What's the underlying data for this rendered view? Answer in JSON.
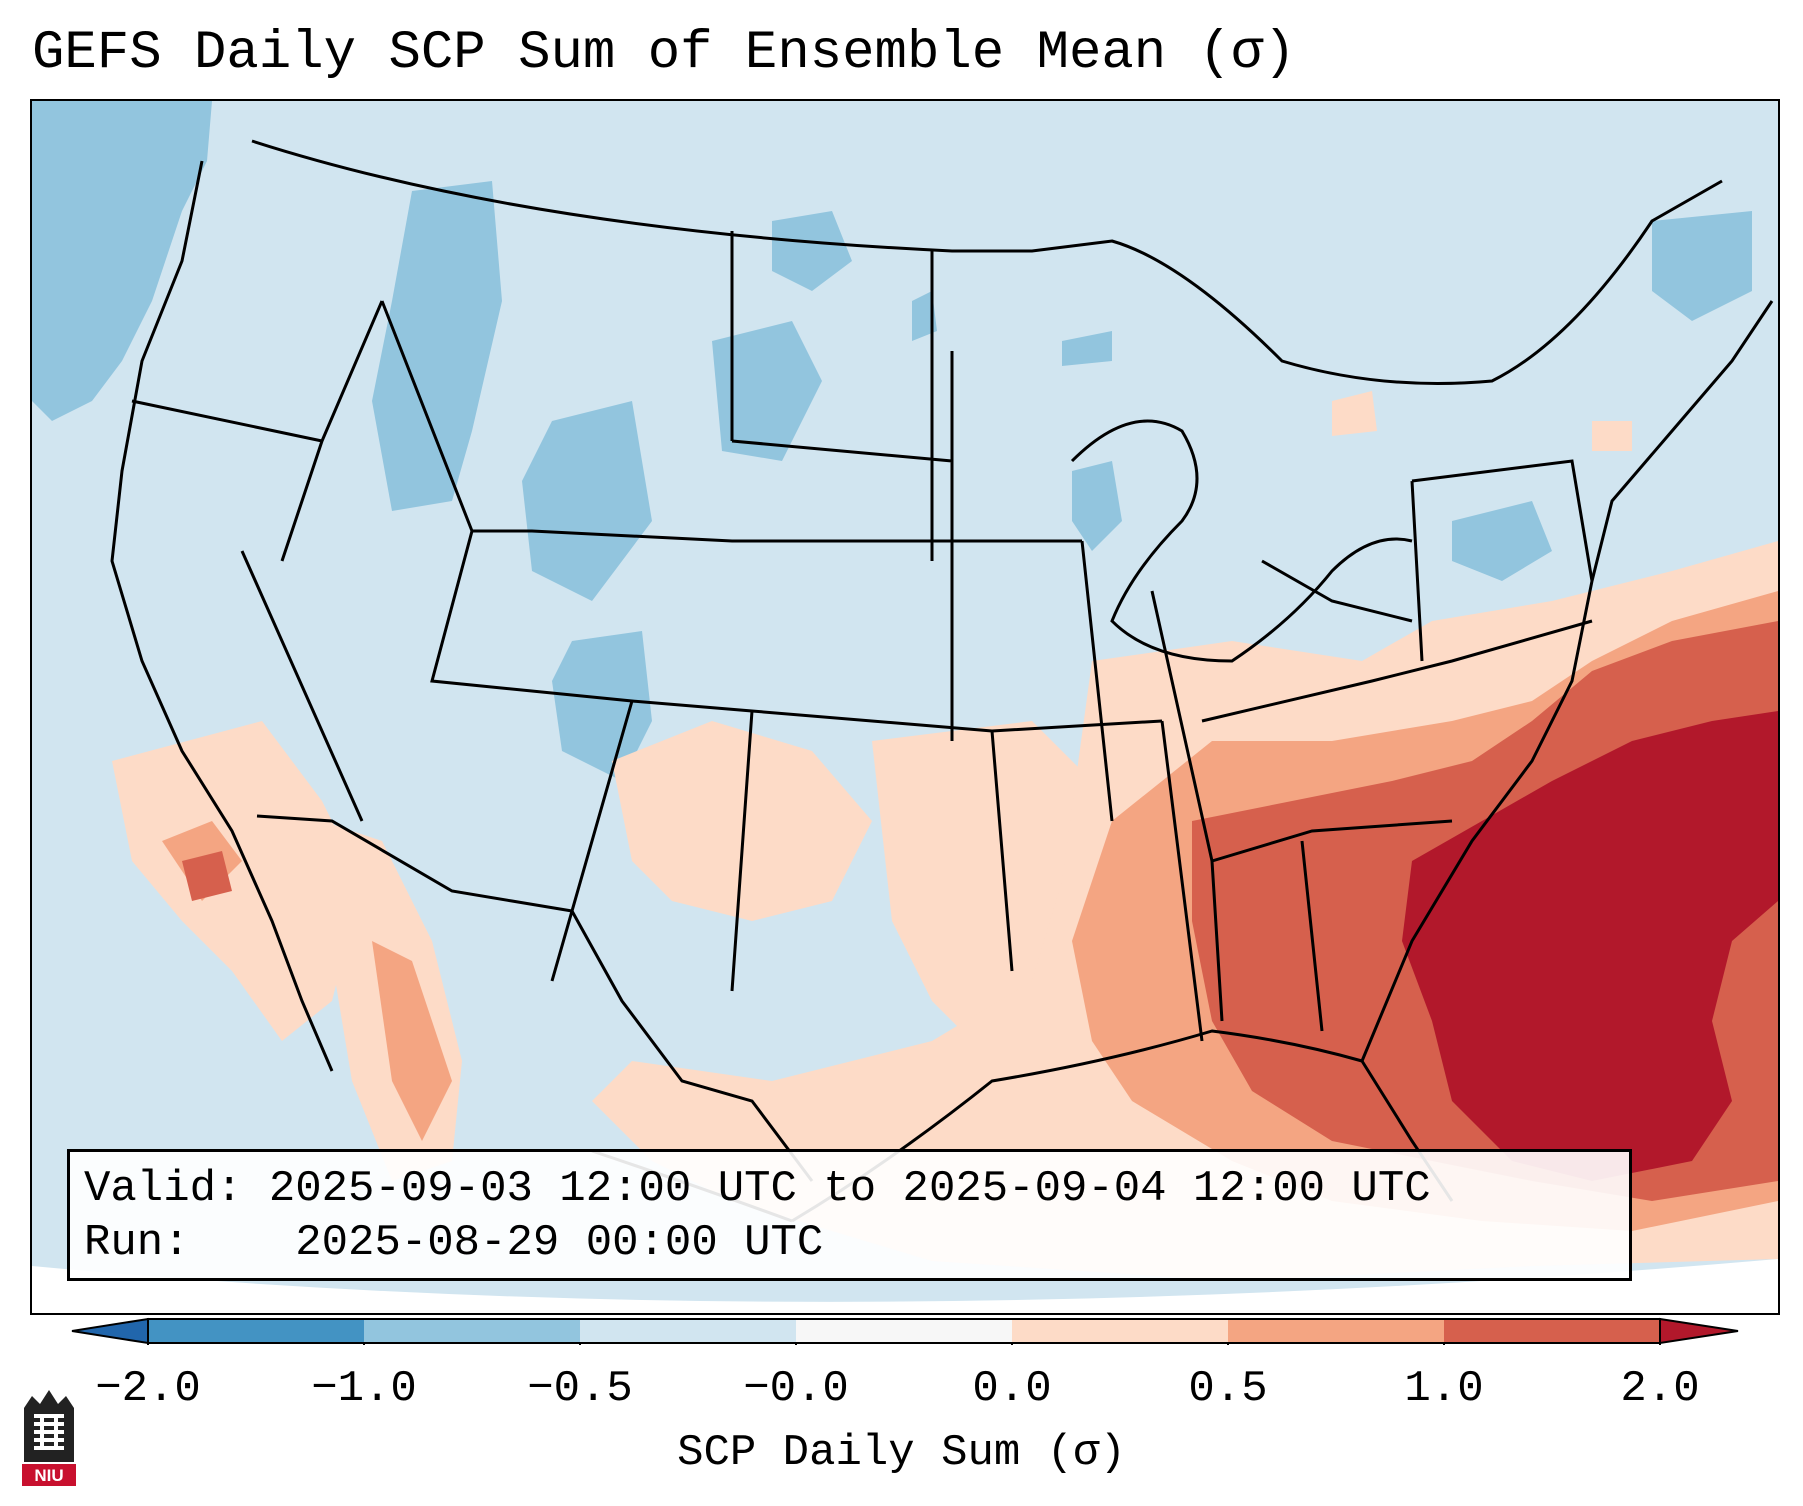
{
  "title": "GEFS Daily SCP Sum of Ensemble Mean (σ)",
  "info": {
    "valid_label": "Valid:",
    "valid_value": "2025-09-03 12:00 UTC to 2025-09-04 12:00 UTC",
    "run_label": "Run:",
    "run_value": "2025-08-29 00:00 UTC"
  },
  "colorbar": {
    "label": "SCP Daily Sum (σ)",
    "ticks": [
      "−2.0",
      "−1.0",
      "−0.5",
      "−0.0",
      "0.0",
      "0.5",
      "1.0",
      "2.0"
    ],
    "colors": [
      "#4393c3",
      "#92c5de",
      "#d1e5f0",
      "#f7f7f7",
      "#fddbc7",
      "#f4a582",
      "#d6604d",
      "#b2182b"
    ]
  },
  "logo": {
    "text": "NIU"
  },
  "colors": {
    "background": "#d1e5f0",
    "border": "#000000"
  }
}
